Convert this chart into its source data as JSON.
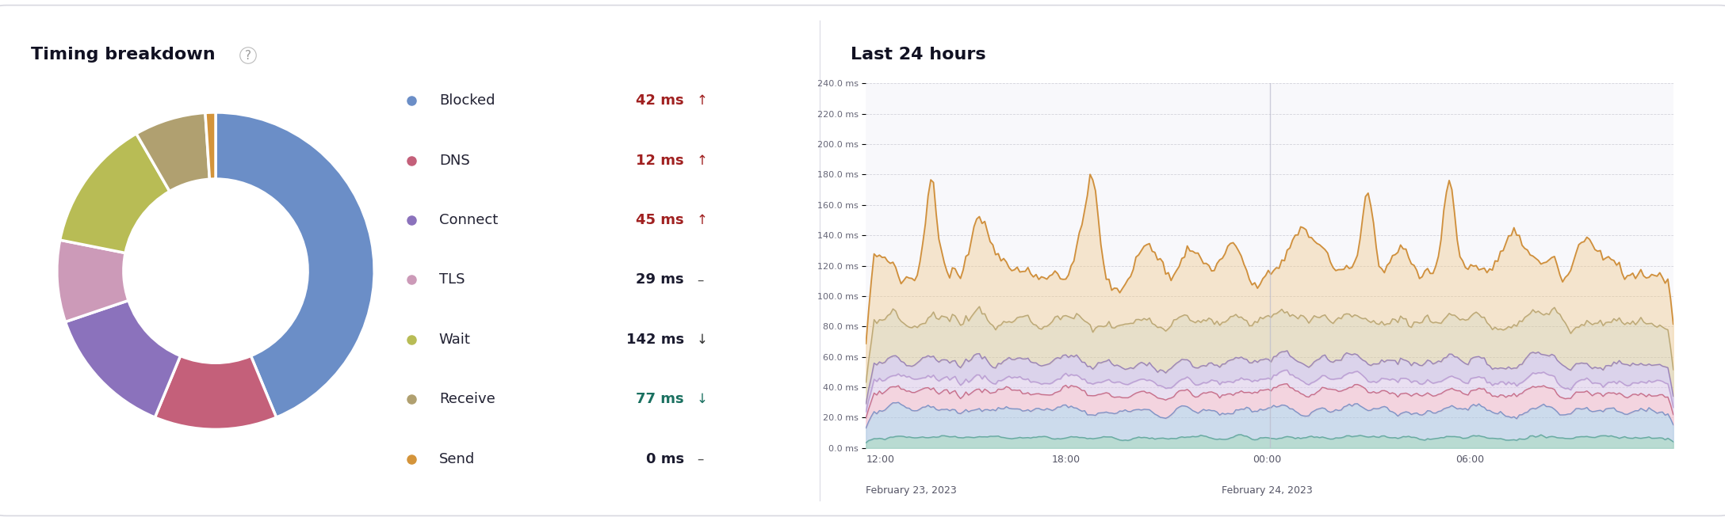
{
  "title_left": "Timing breakdown",
  "question_mark": "?",
  "title_right": "Last 24 hours",
  "donut_values": [
    42,
    12,
    13,
    8,
    13,
    7,
    1
  ],
  "donut_colors": [
    "#6b8ec7",
    "#c4607a",
    "#8b72bc",
    "#cc9ab8",
    "#b8bc55",
    "#b0a070",
    "#d4943a"
  ],
  "legend_labels": [
    "Blocked",
    "DNS",
    "Connect",
    "TLS",
    "Wait",
    "Receive",
    "Send"
  ],
  "legend_dot_colors": [
    "#6b8ec7",
    "#c4607a",
    "#8b72bc",
    "#cc9ab8",
    "#b8bc55",
    "#b0a070",
    "#d4943a"
  ],
  "legend_values": [
    "42 ms",
    "12 ms",
    "45 ms",
    "29 ms",
    "142 ms",
    "77 ms",
    "0 ms"
  ],
  "legend_value_colors": [
    "#a02020",
    "#a02020",
    "#a02020",
    "#1a1a2e",
    "#1a1a2e",
    "#1a7060",
    "#1a1a2e"
  ],
  "legend_arrows": [
    "↑",
    "↑",
    "↑",
    "–",
    "↓",
    "↓",
    "–"
  ],
  "legend_arrow_colors": [
    "#a02020",
    "#a02020",
    "#a02020",
    "#555555",
    "#333333",
    "#1a7060",
    "#555555"
  ],
  "ytick_labels": [
    "0.0 ms",
    "20.0 ms",
    "40.0 ms",
    "60.0 ms",
    "80.0 ms",
    "100.0 ms",
    "120.0 ms",
    "140.0 ms",
    "160.0 ms",
    "180.0 ms",
    "200.0 ms",
    "220.0 ms",
    "240.0 ms"
  ],
  "ytick_values": [
    0,
    20,
    40,
    60,
    80,
    100,
    120,
    140,
    160,
    180,
    200,
    220,
    240
  ],
  "bg_color": "#ffffff",
  "card_border": "#d8d8e0",
  "ts_fill_colors": [
    "#90c8b8",
    "#a8c4e0",
    "#f0b8c8",
    "#dcc8e8",
    "#c0b0dc",
    "#d8c898",
    "#f0c888"
  ],
  "ts_line_colors": [
    "#60a898",
    "#6b8ec7",
    "#c4607a",
    "#b898d0",
    "#8b72bc",
    "#b0a070",
    "#cc8830"
  ],
  "n_points": 300
}
